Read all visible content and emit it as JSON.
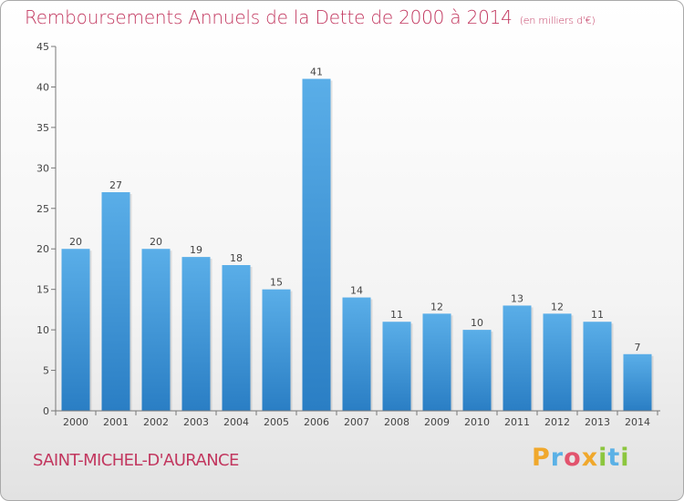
{
  "header": {
    "title": "Remboursements Annuels de la Dette de 2000 à 2014",
    "unit": "(en milliers d'€)"
  },
  "footer": {
    "commune": "SAINT-MICHEL-D'AURANCE",
    "brand_letters": [
      {
        "char": "P",
        "color": "#f0a82c"
      },
      {
        "char": "r",
        "color": "#5bb1e6"
      },
      {
        "char": "o",
        "color": "#e2546e"
      },
      {
        "char": "x",
        "color": "#f0a82c"
      },
      {
        "char": "i",
        "color": "#8cc63e"
      },
      {
        "char": "t",
        "color": "#5bb1e6"
      },
      {
        "char": "i",
        "color": "#8cc63e"
      }
    ]
  },
  "chart_data": {
    "type": "bar",
    "categories": [
      "2000",
      "2001",
      "2002",
      "2003",
      "2004",
      "2005",
      "2006",
      "2007",
      "2008",
      "2009",
      "2010",
      "2011",
      "2012",
      "2013",
      "2014"
    ],
    "values": [
      20,
      27,
      20,
      19,
      18,
      15,
      41,
      14,
      11,
      12,
      10,
      13,
      12,
      11,
      7
    ],
    "value_labels": [
      "20",
      "27",
      "20",
      "19",
      "18",
      "15",
      "41",
      "14",
      "11",
      "12",
      "10",
      "13",
      "12",
      "11",
      "7"
    ],
    "ylim": [
      0,
      45
    ],
    "yticks": [
      0,
      5,
      10,
      15,
      20,
      25,
      30,
      35,
      40,
      45
    ],
    "ytick_labels": [
      "0",
      "5",
      "10",
      "15",
      "20",
      "25",
      "30",
      "35",
      "40",
      "45"
    ],
    "grid": false,
    "bar_color_top": "#5aaee8",
    "bar_color_bottom": "#2a7ec4"
  }
}
